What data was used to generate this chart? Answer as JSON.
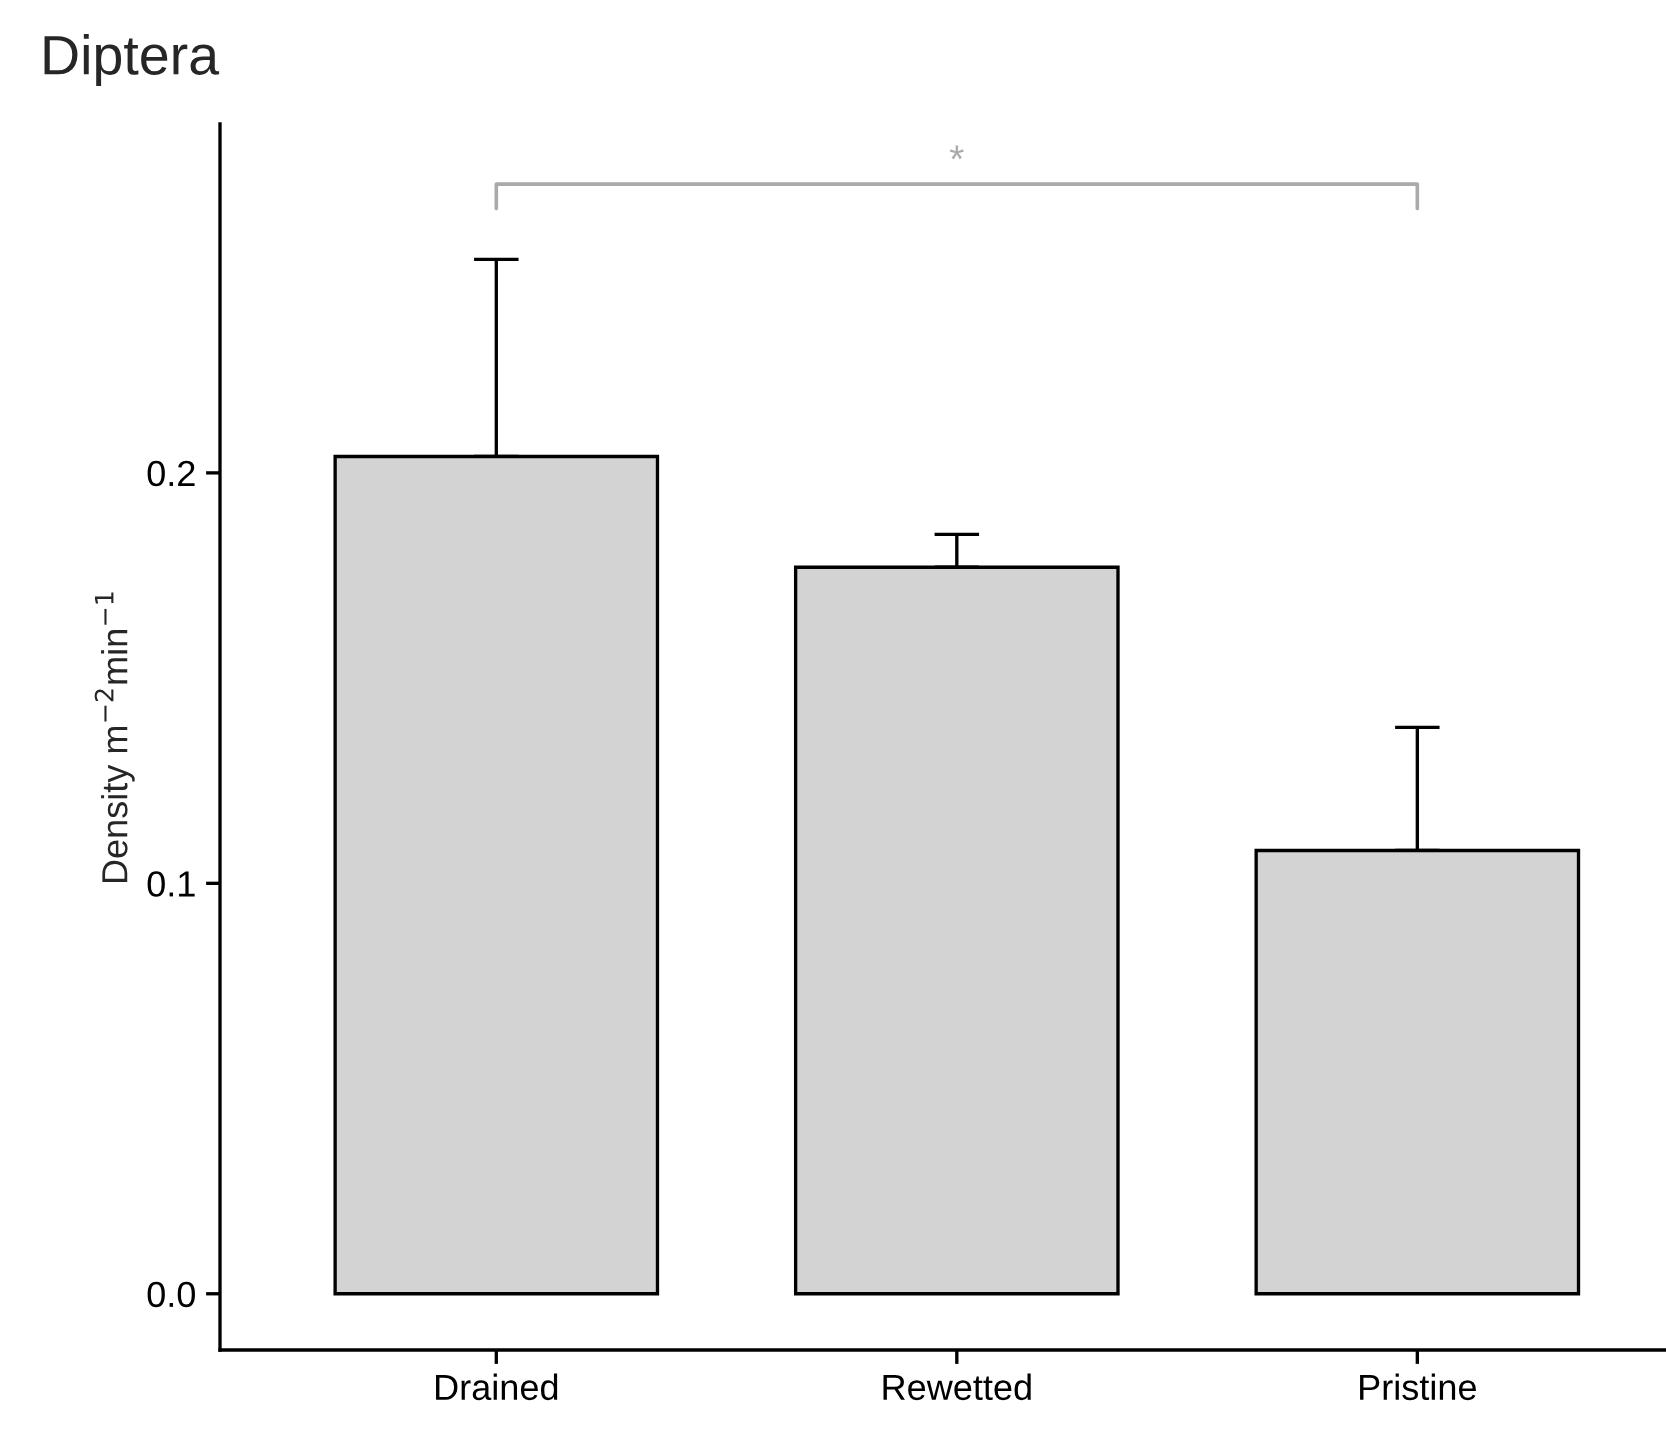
{
  "chart_data": {
    "type": "bar",
    "title": "Diptera",
    "ylabel": "Density m$^{−2}$min$^{−1}$",
    "categories": [
      "Drained",
      "Rewetted",
      "Pristine"
    ],
    "values": [
      0.204,
      0.177,
      0.108
    ],
    "errors": [
      [
        0.204,
        0.252
      ],
      [
        0.177,
        0.185
      ],
      [
        0.108,
        0.138
      ]
    ],
    "color": "#d3d3d3",
    "ylim": [
      -0.0137,
      0.285
    ],
    "yticks": [
      {
        "value": 0,
        "label": "0.0"
      },
      {
        "value": 0.1,
        "label": "0.1"
      },
      {
        "value": 0.2,
        "label": "0.2"
      }
    ],
    "annotations": [
      "*"
    ],
    "grid": false
  }
}
